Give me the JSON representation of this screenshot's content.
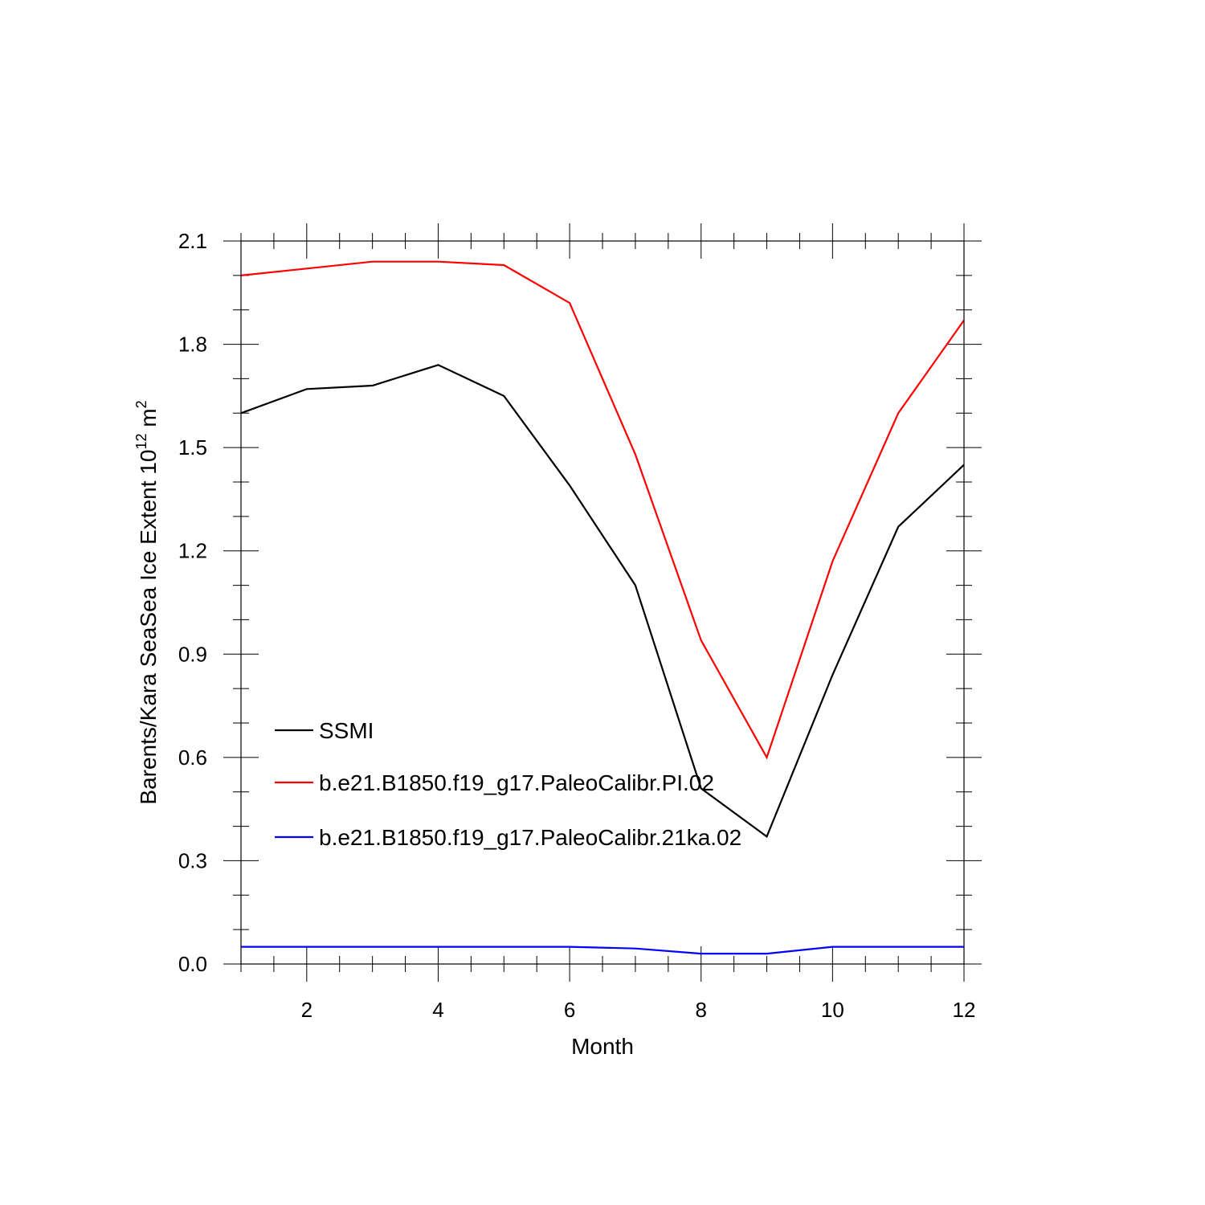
{
  "chart_data": {
    "type": "line",
    "title": "",
    "xlabel": "Month",
    "ylabel_main": "Barents/Kara SeaSea Ice Extent 10",
    "ylabel_exp": "12",
    "ylabel_unit": " m",
    "ylabel_unit_exp": "2",
    "xlim": [
      1,
      12
    ],
    "ylim": [
      0.0,
      2.1
    ],
    "x_major_ticks": [
      2,
      4,
      6,
      8,
      10,
      12
    ],
    "x_minor_step": 0.5,
    "y_major_ticks": [
      0.0,
      0.3,
      0.6,
      0.9,
      1.2,
      1.5,
      1.8,
      2.1
    ],
    "y_tick_labels": [
      "0.0",
      "0.3",
      "0.6",
      "0.9",
      "1.2",
      "1.5",
      "1.8",
      "2.1"
    ],
    "y_minor_step": 0.1,
    "grid": false,
    "legend_position": "lower-left (inside)",
    "x": [
      1,
      2,
      3,
      4,
      5,
      6,
      7,
      8,
      9,
      10,
      11,
      12
    ],
    "series": [
      {
        "name": "SSMI",
        "color": "#000000",
        "values": [
          1.6,
          1.67,
          1.68,
          1.74,
          1.65,
          1.39,
          1.1,
          0.51,
          0.37,
          0.84,
          1.27,
          1.45
        ]
      },
      {
        "name": "b.e21.B1850.f19_g17.PaleoCalibr.PI.02",
        "color": "#ff0000",
        "values": [
          2.0,
          2.02,
          2.04,
          2.04,
          2.03,
          1.92,
          1.48,
          0.94,
          0.6,
          1.17,
          1.6,
          1.87
        ]
      },
      {
        "name": "b.e21.B1850.f19_g17.PaleoCalibr.21ka.02",
        "color": "#0000ff",
        "values": [
          0.05,
          0.05,
          0.05,
          0.05,
          0.05,
          0.05,
          0.045,
          0.03,
          0.03,
          0.05,
          0.05,
          0.05
        ]
      }
    ]
  }
}
